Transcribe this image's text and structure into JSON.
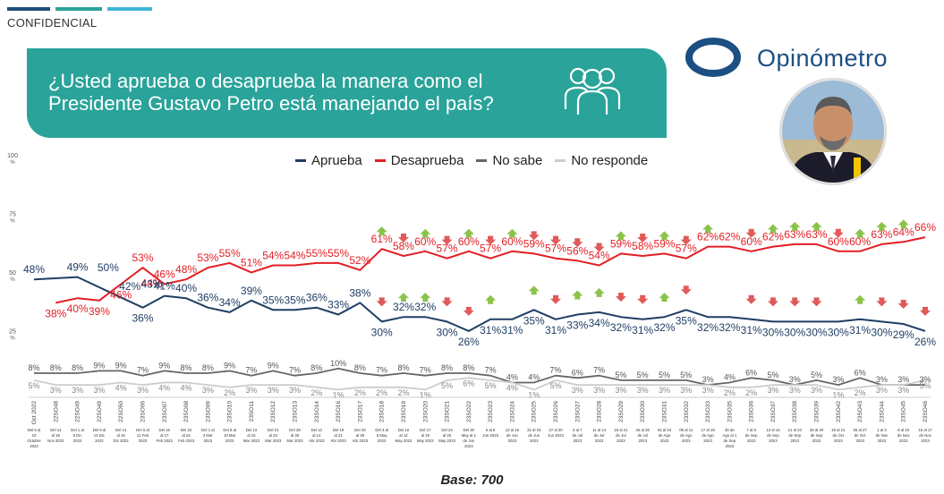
{
  "header": {
    "confidential": "CONFIDENCIAL",
    "question": "¿Usted aprueba o desaprueba la manera como el Presidente Gustavo Petro está manejando el país?",
    "brand": "Opinómetro",
    "icon": "people-group-icon",
    "bar_colors": [
      "#1f4e79",
      "#2aa39a",
      "#3fb3d8"
    ]
  },
  "footer": {
    "base": "Base: 700"
  },
  "colors": {
    "aprueba": "#1f3e64",
    "desaprueba": "#e31e24",
    "no_sabe": "#666666",
    "no_responde": "#cccccc",
    "up_arrow": "#8bc34a",
    "down_arrow": "#e05a5a"
  },
  "chart_data": {
    "type": "line",
    "title": "",
    "xlabel": "",
    "ylabel": "",
    "ylim": [
      0,
      100
    ],
    "y_ticks": [
      "100 %",
      "75 %",
      "50 %",
      "25 %"
    ],
    "grid": false,
    "legend_position": "top",
    "categories": [
      "Oct 2022",
      "22SO48",
      "22SO49",
      "22SO49",
      "22SO50",
      "23SO06",
      "23SO07",
      "23SO08",
      "23SO09",
      "23SO10",
      "23SO11",
      "23SO12",
      "23SO13",
      "23SO14",
      "23SO16",
      "23SO17",
      "23SO18",
      "23SO19",
      "23SO20",
      "23SO21",
      "23SO22",
      "23SO23",
      "23SO24",
      "23SO25",
      "23SO26",
      "23SO27",
      "23SO28",
      "23SO29",
      "23SO30",
      "23SO31",
      "23SO32",
      "23SO33",
      "23SO35",
      "23SO36",
      "23SO37",
      "23SO38",
      "23SO39",
      "23SO42",
      "23SO43",
      "23SO44",
      "23SO45",
      "23SO46"
    ],
    "date_labels": [
      "Del 6 al 10 Octubre 2022",
      "Del 14 al 18 Nov 2022",
      "Del 1 al 5 Dic 2022",
      "Del 9 al 13 Dic 2022",
      "Del 14 al 16 Dic 2022",
      "Del 6 al 11 Feb 2023",
      "Del 15 al 17 Feb 2023",
      "Del 22 al 24 Feb 2023",
      "Del 1 al 3 Mar 2023",
      "Del 8 al 10 Mar 2023",
      "Del 13 al 15 Mar 2023",
      "Del 21 al 23 Mar 2023",
      "Del 28 al 30 Mar 2023",
      "Del 12 al 14 Abr 2023",
      "Del 19 al 21 Abr 2023",
      "Del 26 al 28 Abr 2023",
      "Del 3 al 5 May 2023",
      "Del 10 al 12 May 2023",
      "Del 17 al 19 May 2023",
      "Del 24 al 26 May 2023",
      "Del 30 May al 1 de Jun 2023",
      "6 al 8 Jun 2023",
      "13 al 16 de Jun 2023",
      "21 al 23 de Jun 2023",
      "27 al 30 Jun 2023",
      "4 al 7 de Jul 2023",
      "11 al 14 de Jul 2023",
      "18 al 21 de Jul 2023",
      "26 al 28 de Jul 2023",
      "02 al 04 de Ago 2023",
      "09 al 11 de Ago 2023",
      "17 al 18 de Ago 2023",
      "30 de Ago al 1 de Sep 2023",
      "7 al 8 de Sep 2023",
      "13 al 15 de Sep 2023",
      "21 al 23 de Sep 2023",
      "26 al 29 de Sep 2023",
      "19 al 21 de Oct 2023",
      "26 al 27 de Oct 2023",
      "1 al 3 de Nov 2023",
      "8 al 10 de Nov 2023",
      "15 al 17 de Nov 2023"
    ],
    "series": [
      {
        "name": "Aprueba",
        "color": "#1f3e64",
        "values": [
          48,
          null,
          49,
          null,
          null,
          36,
          41,
          40,
          36,
          34,
          39,
          35,
          35,
          36,
          33,
          38,
          30,
          32,
          32,
          30,
          26,
          31,
          31,
          35,
          31,
          33,
          34,
          32,
          31,
          32,
          35,
          32,
          32,
          31,
          30,
          30,
          30,
          30,
          31,
          30,
          29,
          26
        ]
      },
      {
        "name": "Desaprueba",
        "color": "#e31e24",
        "values": [
          null,
          38,
          40,
          39,
          46,
          53,
          46,
          48,
          53,
          55,
          51,
          54,
          54,
          55,
          55,
          52,
          61,
          58,
          60,
          57,
          60,
          57,
          60,
          59,
          57,
          56,
          54,
          59,
          58,
          59,
          57,
          62,
          62,
          60,
          62,
          63,
          63,
          60,
          60,
          63,
          64,
          66
        ]
      },
      {
        "name": "No sabe",
        "color": "#666666",
        "values": [
          8,
          8,
          8,
          9,
          9,
          7,
          9,
          8,
          8,
          9,
          7,
          9,
          7,
          8,
          10,
          8,
          7,
          8,
          7,
          8,
          8,
          7,
          4,
          4,
          7,
          6,
          7,
          5,
          5,
          5,
          5,
          3,
          4,
          6,
          5,
          3,
          5,
          3,
          6,
          3,
          3,
          3
        ]
      },
      {
        "name": "No responde",
        "color": "#cccccc",
        "values": [
          5,
          3,
          3,
          3,
          4,
          3,
          4,
          4,
          3,
          2,
          3,
          3,
          3,
          2,
          1,
          2,
          2,
          2,
          1,
          5,
          6,
          5,
          4,
          1,
          5,
          3,
          3,
          3,
          3,
          3,
          3,
          3,
          2,
          2,
          3,
          3,
          3,
          1,
          2,
          3,
          3,
          5
        ]
      }
    ],
    "desaprueba_extra_labels": [
      {
        "index": 5,
        "label": "44%"
      }
    ],
    "aprueba_extra_labels": [
      {
        "index": 3,
        "label": "50%"
      },
      {
        "index": 4,
        "label": "42%"
      },
      {
        "index": 5,
        "label": "43%"
      }
    ],
    "trend_markers": [
      {
        "index": 16,
        "series": "Desaprueba",
        "dir": "up"
      },
      {
        "index": 17,
        "series": "Desaprueba",
        "dir": "down"
      },
      {
        "index": 18,
        "series": "Desaprueba",
        "dir": "up"
      },
      {
        "index": 19,
        "series": "Desaprueba",
        "dir": "down"
      },
      {
        "index": 20,
        "series": "Desaprueba",
        "dir": "up"
      },
      {
        "index": 21,
        "series": "Desaprueba",
        "dir": "down"
      },
      {
        "index": 22,
        "series": "Desaprueba",
        "dir": "up"
      },
      {
        "index": 23,
        "series": "Desaprueba",
        "dir": "down"
      },
      {
        "index": 24,
        "series": "Desaprueba",
        "dir": "down"
      },
      {
        "index": 25,
        "series": "Desaprueba",
        "dir": "down"
      },
      {
        "index": 26,
        "series": "Desaprueba",
        "dir": "down"
      },
      {
        "index": 27,
        "series": "Desaprueba",
        "dir": "up"
      },
      {
        "index": 28,
        "series": "Desaprueba",
        "dir": "down"
      },
      {
        "index": 29,
        "series": "Desaprueba",
        "dir": "up"
      },
      {
        "index": 30,
        "series": "Desaprueba",
        "dir": "down"
      },
      {
        "index": 31,
        "series": "Desaprueba",
        "dir": "up"
      },
      {
        "index": 33,
        "series": "Desaprueba",
        "dir": "down"
      },
      {
        "index": 34,
        "series": "Desaprueba",
        "dir": "up"
      },
      {
        "index": 35,
        "series": "Desaprueba",
        "dir": "up"
      },
      {
        "index": 36,
        "series": "Desaprueba",
        "dir": "up"
      },
      {
        "index": 37,
        "series": "Desaprueba",
        "dir": "down"
      },
      {
        "index": 38,
        "series": "Desaprueba",
        "dir": "up"
      },
      {
        "index": 39,
        "series": "Desaprueba",
        "dir": "up"
      },
      {
        "index": 40,
        "series": "Desaprueba",
        "dir": "up"
      },
      {
        "index": 16,
        "series": "Aprueba",
        "dir": "down"
      },
      {
        "index": 17,
        "series": "Aprueba",
        "dir": "up"
      },
      {
        "index": 18,
        "series": "Aprueba",
        "dir": "up"
      },
      {
        "index": 19,
        "series": "Aprueba",
        "dir": "down"
      },
      {
        "index": 20,
        "series": "Aprueba",
        "dir": "down"
      },
      {
        "index": 21,
        "series": "Aprueba",
        "dir": "up"
      },
      {
        "index": 23,
        "series": "Aprueba",
        "dir": "up"
      },
      {
        "index": 24,
        "series": "Aprueba",
        "dir": "down"
      },
      {
        "index": 25,
        "series": "Aprueba",
        "dir": "up"
      },
      {
        "index": 26,
        "series": "Aprueba",
        "dir": "up"
      },
      {
        "index": 27,
        "series": "Aprueba",
        "dir": "down"
      },
      {
        "index": 28,
        "series": "Aprueba",
        "dir": "down"
      },
      {
        "index": 29,
        "series": "Aprueba",
        "dir": "up"
      },
      {
        "index": 30,
        "series": "Aprueba",
        "dir": "down"
      },
      {
        "index": 33,
        "series": "Aprueba",
        "dir": "down"
      },
      {
        "index": 34,
        "series": "Aprueba",
        "dir": "down"
      },
      {
        "index": 35,
        "series": "Aprueba",
        "dir": "down"
      },
      {
        "index": 36,
        "series": "Aprueba",
        "dir": "down"
      },
      {
        "index": 38,
        "series": "Aprueba",
        "dir": "up"
      },
      {
        "index": 39,
        "series": "Aprueba",
        "dir": "down"
      },
      {
        "index": 40,
        "series": "Aprueba",
        "dir": "down"
      },
      {
        "index": 41,
        "series": "Aprueba",
        "dir": "down"
      }
    ]
  }
}
